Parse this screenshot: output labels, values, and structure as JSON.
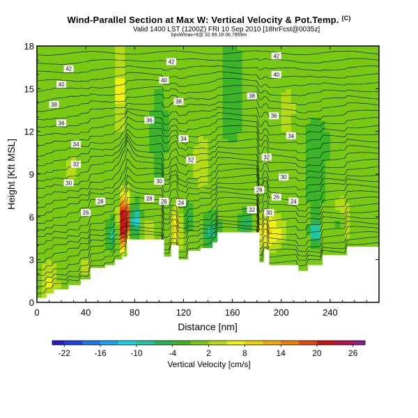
{
  "header": {
    "title": "Wind-Parallel Section at Max W: Vertical Velocity & Pot.Temp.",
    "copyright": "(C)",
    "subtitle": "Valid 1400 LST (1200Z) FRI 10 Sep 2010 [18hrFcst@0035z]",
    "run_id": "bpxWmax+tt@ 32 99.19 06.7959m"
  },
  "colors": {
    "terrain": "#ffffff",
    "contour": "#000000",
    "background": "#ffffff"
  },
  "chart_data": {
    "type": "heatmap",
    "xlabel": "Distance [nm]",
    "ylabel": "Height [Kft MSL]",
    "xlim": [
      0,
      280
    ],
    "ylim": [
      0,
      18
    ],
    "xticks": [
      0,
      40,
      80,
      120,
      160,
      200,
      240
    ],
    "yticks": [
      0,
      3,
      6,
      9,
      12,
      15,
      18
    ],
    "grid": false,
    "colorbar": {
      "label": "Vertical Velocity [cm/s]",
      "tick_labels": [
        "-22",
        "-16",
        "-10",
        "-4",
        "2",
        "8",
        "14",
        "20",
        "26"
      ],
      "bins": [
        {
          "from": -24,
          "to": -22,
          "color": "#2020c8"
        },
        {
          "from": -22,
          "to": -19,
          "color": "#1e40e6"
        },
        {
          "from": -19,
          "to": -16,
          "color": "#1e78f0"
        },
        {
          "from": -16,
          "to": -13,
          "color": "#14a8f0"
        },
        {
          "from": -13,
          "to": -10,
          "color": "#1ed2e6"
        },
        {
          "from": -10,
          "to": -7,
          "color": "#1ec8a0"
        },
        {
          "from": -7,
          "to": -4,
          "color": "#28b450"
        },
        {
          "from": -4,
          "to": -1,
          "color": "#3cb428"
        },
        {
          "from": -1,
          "to": 2,
          "color": "#78c814"
        },
        {
          "from": 2,
          "to": 5,
          "color": "#b4dc14"
        },
        {
          "from": 5,
          "to": 8,
          "color": "#f0f014"
        },
        {
          "from": 8,
          "to": 11,
          "color": "#f0d20a"
        },
        {
          "from": 11,
          "to": 14,
          "color": "#f0aa0a"
        },
        {
          "from": 14,
          "to": 17,
          "color": "#f07d0a"
        },
        {
          "from": 17,
          "to": 20,
          "color": "#e6460a"
        },
        {
          "from": 20,
          "to": 23,
          "color": "#c81414"
        },
        {
          "from": 23,
          "to": 26,
          "color": "#b41450"
        },
        {
          "from": 26,
          "to": 28,
          "color": "#8c1e8c"
        }
      ]
    },
    "terrain_profile": [
      [
        0,
        0.3
      ],
      [
        8,
        0.3
      ],
      [
        8,
        0.6
      ],
      [
        14,
        0.6
      ],
      [
        14,
        0.9
      ],
      [
        26,
        0.9
      ],
      [
        26,
        1.2
      ],
      [
        36,
        1.2
      ],
      [
        36,
        1.6
      ],
      [
        44,
        1.6
      ],
      [
        44,
        2.4
      ],
      [
        56,
        2.4
      ],
      [
        56,
        2.6
      ],
      [
        64,
        2.6
      ],
      [
        64,
        3.0
      ],
      [
        70,
        3.0
      ],
      [
        70,
        3.2
      ],
      [
        74,
        3.2
      ],
      [
        74,
        4.4
      ],
      [
        104,
        4.4
      ],
      [
        104,
        3.2
      ],
      [
        110,
        3.2
      ],
      [
        110,
        4.0
      ],
      [
        116,
        4.0
      ],
      [
        116,
        3.0
      ],
      [
        124,
        3.0
      ],
      [
        124,
        3.6
      ],
      [
        134,
        3.6
      ],
      [
        134,
        3.8
      ],
      [
        144,
        3.8
      ],
      [
        144,
        4.2
      ],
      [
        148,
        4.2
      ],
      [
        148,
        4.9
      ],
      [
        182,
        4.9
      ],
      [
        182,
        2.8
      ],
      [
        186,
        2.8
      ],
      [
        186,
        3.7
      ],
      [
        190,
        3.7
      ],
      [
        190,
        2.6
      ],
      [
        214,
        2.6
      ],
      [
        214,
        2.2
      ],
      [
        222,
        2.2
      ],
      [
        222,
        2.6
      ],
      [
        234,
        2.6
      ],
      [
        234,
        3.3
      ],
      [
        254,
        3.3
      ],
      [
        254,
        3.9
      ],
      [
        280,
        3.9
      ]
    ],
    "updraft_cells": [
      {
        "x": 72,
        "z": 6.0,
        "sx": 4,
        "sz": 1.4,
        "w": 27
      },
      {
        "x": 70,
        "z": 4.5,
        "sx": 3,
        "sz": 1.0,
        "w": 10
      },
      {
        "x": 114,
        "z": 5.2,
        "sx": 5,
        "sz": 1.5,
        "w": 8
      },
      {
        "x": 190,
        "z": 5.0,
        "sx": 12,
        "sz": 1.3,
        "w": 8
      },
      {
        "x": 92,
        "z": 5.0,
        "sx": 5,
        "sz": 1.0,
        "w": 5
      },
      {
        "x": 10,
        "z": 1.5,
        "sx": 8,
        "sz": 1.5,
        "w": 5
      },
      {
        "x": 68,
        "z": 15.0,
        "sx": 5,
        "sz": 3.0,
        "w": 6
      },
      {
        "x": 135,
        "z": 10.0,
        "sx": 8,
        "sz": 3.0,
        "w": 3
      },
      {
        "x": 205,
        "z": 13.0,
        "sx": 10,
        "sz": 3.0,
        "w": 3
      },
      {
        "x": 30,
        "z": 9.0,
        "sx": 12,
        "sz": 4.0,
        "w": 2
      },
      {
        "x": 250,
        "z": 6.0,
        "sx": 8,
        "sz": 2.0,
        "w": 4
      },
      {
        "x": 40,
        "z": 2.5,
        "sx": 10,
        "sz": 1.2,
        "w": 3
      }
    ],
    "downdraft_cells": [
      {
        "x": 80,
        "z": 5.8,
        "sx": 4,
        "sz": 1.0,
        "w": -14
      },
      {
        "x": 62,
        "z": 4.8,
        "sx": 4,
        "sz": 1.0,
        "w": -8
      },
      {
        "x": 142,
        "z": 5.0,
        "sx": 6,
        "sz": 1.1,
        "w": -8
      },
      {
        "x": 172,
        "z": 5.5,
        "sx": 5,
        "sz": 0.9,
        "w": -8
      },
      {
        "x": 228,
        "z": 5.0,
        "sx": 4,
        "sz": 0.9,
        "w": -12
      },
      {
        "x": 248,
        "z": 5.5,
        "sx": 4,
        "sz": 0.8,
        "w": -6
      },
      {
        "x": 100,
        "z": 12.0,
        "sx": 6,
        "sz": 3.0,
        "w": -3
      },
      {
        "x": 160,
        "z": 15.0,
        "sx": 8,
        "sz": 3.0,
        "w": -3
      },
      {
        "x": 230,
        "z": 10.0,
        "sx": 10,
        "sz": 3.0,
        "w": -3
      },
      {
        "x": 124,
        "z": 6.0,
        "sx": 4,
        "sz": 1.0,
        "w": -6
      }
    ],
    "contour_labels": [
      {
        "text": "42",
        "x": 26,
        "z": 16.4
      },
      {
        "text": "40",
        "x": 20,
        "z": 15.3
      },
      {
        "text": "38",
        "x": 14,
        "z": 13.9
      },
      {
        "text": "36",
        "x": 20,
        "z": 12.6
      },
      {
        "text": "34",
        "x": 32,
        "z": 11.1
      },
      {
        "text": "32",
        "x": 32,
        "z": 9.7
      },
      {
        "text": "30",
        "x": 26,
        "z": 8.4
      },
      {
        "text": "28",
        "x": 52,
        "z": 7.1
      },
      {
        "text": "26",
        "x": 40,
        "z": 6.3
      },
      {
        "text": "42",
        "x": 110,
        "z": 16.9
      },
      {
        "text": "40",
        "x": 104,
        "z": 15.6
      },
      {
        "text": "38",
        "x": 116,
        "z": 14.1
      },
      {
        "text": "36",
        "x": 92,
        "z": 12.8
      },
      {
        "text": "34",
        "x": 120,
        "z": 11.5
      },
      {
        "text": "32",
        "x": 126,
        "z": 10.0
      },
      {
        "text": "30",
        "x": 100,
        "z": 8.5
      },
      {
        "text": "28",
        "x": 92,
        "z": 7.3
      },
      {
        "text": "26",
        "x": 104,
        "z": 7.1
      },
      {
        "text": "24",
        "x": 118,
        "z": 7.0
      },
      {
        "text": "42",
        "x": 196,
        "z": 17.3
      },
      {
        "text": "40",
        "x": 196,
        "z": 16.0
      },
      {
        "text": "38",
        "x": 176,
        "z": 14.5
      },
      {
        "text": "36",
        "x": 194,
        "z": 13.1
      },
      {
        "text": "34",
        "x": 208,
        "z": 11.7
      },
      {
        "text": "32",
        "x": 188,
        "z": 10.2
      },
      {
        "text": "30",
        "x": 202,
        "z": 8.8
      },
      {
        "text": "28",
        "x": 182,
        "z": 7.9
      },
      {
        "text": "26",
        "x": 196,
        "z": 7.4
      },
      {
        "text": "24",
        "x": 210,
        "z": 7.1
      },
      {
        "text": "32",
        "x": 176,
        "z": 6.5
      },
      {
        "text": "30",
        "x": 190,
        "z": 6.3
      }
    ]
  }
}
